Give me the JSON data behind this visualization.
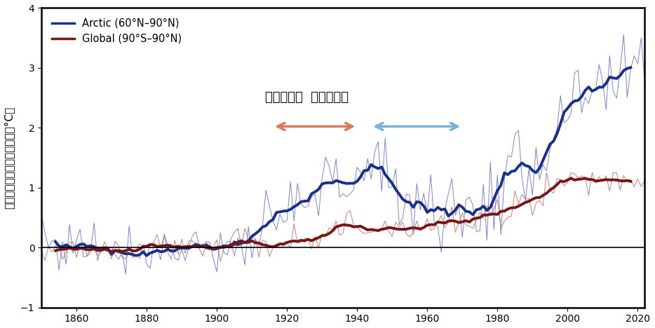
{
  "ylabel": "観測された地上気温の変化（°C）",
  "ylim": [
    -1.0,
    4.0
  ],
  "xlim": [
    1850,
    2022
  ],
  "yticks": [
    -1,
    0,
    1,
    2,
    3,
    4
  ],
  "xticks": [
    1860,
    1880,
    1900,
    1920,
    1940,
    1960,
    1980,
    2000,
    2020
  ],
  "arctic_color": "#1a2f8a",
  "arctic_thin_color": "#6878cc",
  "global_color": "#7a1515",
  "global_thin_color": "#c07070",
  "legend_arctic": "Arctic (60°N–90°N)",
  "legend_global": "Global (90°S–90°N)",
  "annotation_text": "北極温暖化  北極寒冷化",
  "arrow_warm_color": "#e07858",
  "arrow_cool_color": "#78b0d8",
  "background_color": "#ffffff",
  "figsize": [
    9.34,
    4.68
  ],
  "dpi": 100
}
